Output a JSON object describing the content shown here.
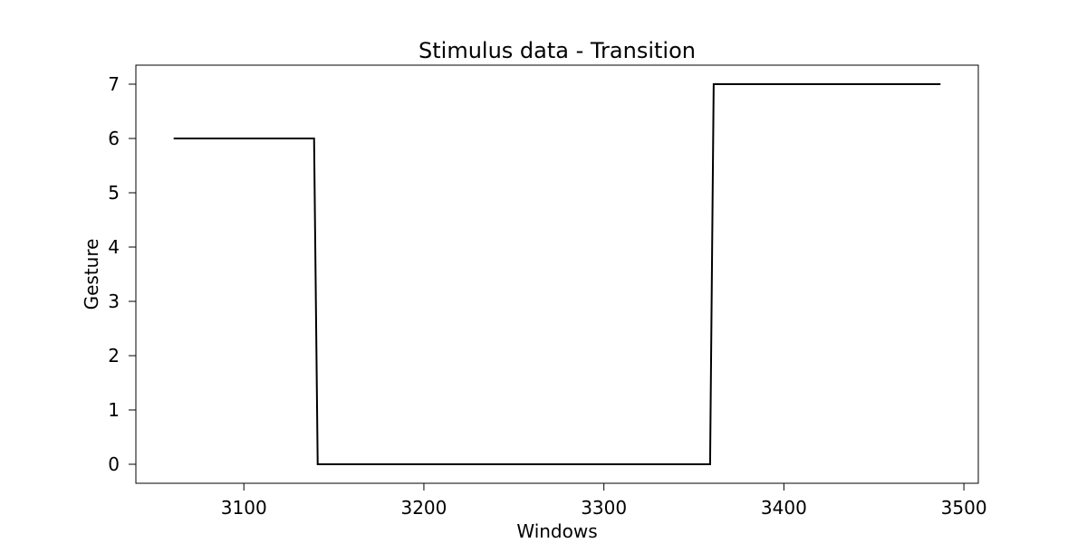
{
  "chart_data": {
    "type": "line",
    "title": "Stimulus data - Transition",
    "xlabel": "Windows",
    "ylabel": "Gesture",
    "xlim": [
      3040,
      3508
    ],
    "ylim": [
      -0.35,
      7.35
    ],
    "xticks": [
      3100,
      3200,
      3300,
      3400,
      3500
    ],
    "yticks": [
      0,
      1,
      2,
      3,
      4,
      5,
      6,
      7
    ],
    "grid": false,
    "line_color": "#000000",
    "series": [
      {
        "x": [
          3061,
          3139,
          3141,
          3359,
          3361,
          3487
        ],
        "y": [
          6,
          6,
          0,
          0,
          7,
          7
        ]
      }
    ]
  }
}
